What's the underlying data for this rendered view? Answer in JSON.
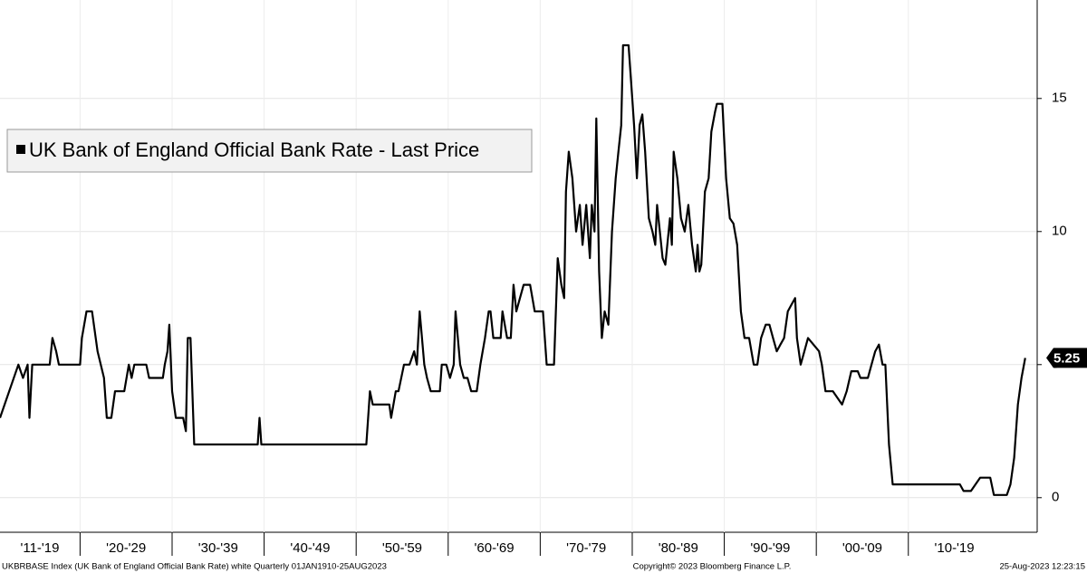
{
  "chart_data": {
    "type": "line",
    "series": [
      {
        "name": "UK Bank of England Official Bank Rate - Last Price",
        "color": "#000000",
        "x": [
          1911.3,
          1913.3,
          1913.8,
          1914.3,
          1914.5,
          1914.8,
          1916.7,
          1917.0,
          1917.4,
          1917.7,
          1920.0,
          1920.2,
          1920.7,
          1921.3,
          1921.9,
          1922.6,
          1922.9,
          1923.4,
          1923.8,
          1924.8,
          1925.3,
          1925.6,
          1925.9,
          1927.2,
          1927.5,
          1929.0,
          1929.2,
          1929.5,
          1929.7,
          1930.0,
          1930.4,
          1931.2,
          1931.5,
          1931.7,
          1932.0,
          1932.4,
          1939.3,
          1939.5,
          1939.7,
          1951.1,
          1951.5,
          1951.8,
          1953.6,
          1953.8,
          1954.3,
          1954.6,
          1955.2,
          1955.8,
          1956.3,
          1956.6,
          1956.9,
          1957.4,
          1957.7,
          1958.1,
          1959.1,
          1959.3,
          1959.8,
          1960.2,
          1960.6,
          1960.8,
          1961.3,
          1961.7,
          1962.1,
          1962.5,
          1963.1,
          1963.5,
          1964.0,
          1964.4,
          1964.6,
          1964.9,
          1965.7,
          1965.9,
          1966.4,
          1966.8,
          1967.1,
          1967.4,
          1967.8,
          1968.2,
          1968.9,
          1969.4,
          1970.3,
          1970.7,
          1971.5,
          1971.9,
          1972.3,
          1972.6,
          1972.8,
          1973.1,
          1973.5,
          1973.9,
          1974.3,
          1974.6,
          1975.0,
          1975.4,
          1975.6,
          1975.9,
          1976.1,
          1976.4,
          1976.7,
          1977.0,
          1977.4,
          1977.8,
          1978.2,
          1978.5,
          1978.8,
          1979.0,
          1979.6,
          1980.0,
          1980.2,
          1980.5,
          1980.8,
          1981.1,
          1981.4,
          1981.8,
          1982.2,
          1982.5,
          1982.7,
          1983.3,
          1983.6,
          1984.1,
          1984.3,
          1984.5,
          1984.9,
          1985.3,
          1985.7,
          1986.1,
          1986.5,
          1986.9,
          1987.1,
          1987.3,
          1987.5,
          1987.9,
          1988.3,
          1988.6,
          1989.0,
          1989.2,
          1989.8,
          1990.2,
          1990.6,
          1991.0,
          1991.4,
          1991.8,
          1992.2,
          1992.7,
          1993.2,
          1993.6,
          1994.0,
          1994.5,
          1994.9,
          1995.3,
          1995.7,
          1996.1,
          1996.5,
          1996.9,
          1997.3,
          1997.7,
          1997.9,
          1998.3,
          1998.7,
          1999.1,
          2000.3,
          2000.6,
          2001.0,
          2001.8,
          2002.3,
          2002.8,
          2003.3,
          2003.8,
          2004.5,
          2004.8,
          2005.6,
          2006.0,
          2006.4,
          2006.8,
          2007.2,
          2007.5,
          2007.9,
          2008.3,
          2015.6,
          2016.0,
          2016.8,
          2017.3,
          2017.8,
          2018.9,
          2019.3,
          2020.7,
          2021.1,
          2021.5,
          2021.9,
          2022.3,
          2022.7
        ],
        "values": [
          3,
          5,
          4.5,
          5,
          3,
          5,
          5,
          6,
          5.5,
          5,
          5,
          6,
          7,
          7,
          5.5,
          4.5,
          3,
          3,
          4,
          4,
          5,
          4.5,
          5,
          5,
          4.5,
          4.5,
          5,
          5.5,
          6.5,
          4,
          3,
          3,
          2.5,
          6,
          6,
          2,
          2,
          3,
          2,
          2,
          4,
          3.5,
          3.5,
          3,
          4,
          4,
          5,
          5,
          5.5,
          5,
          7,
          5,
          4.5,
          4,
          4,
          5,
          5,
          4.5,
          5,
          7,
          5,
          4.5,
          4.5,
          4,
          4,
          5,
          6,
          7,
          7,
          6,
          6,
          7,
          6,
          6,
          8,
          7,
          7.5,
          8,
          8,
          7,
          7,
          5,
          5,
          9,
          8,
          7.5,
          11.5,
          13,
          12,
          10,
          11,
          9.5,
          11,
          9,
          11,
          10,
          14.25,
          8.5,
          6,
          7,
          6.5,
          10,
          12,
          13,
          14,
          17,
          17,
          15,
          14,
          12,
          14,
          14.4,
          13,
          10.5,
          10,
          9.5,
          11,
          9,
          8.75,
          10.5,
          9.5,
          13,
          12,
          10.5,
          10,
          11,
          9.5,
          8.5,
          9.5,
          8.5,
          8.75,
          11.5,
          12,
          13.75,
          14.5,
          14.8,
          14.8,
          12,
          10.5,
          10.3,
          9.5,
          7,
          6,
          6,
          5,
          5,
          6,
          6.5,
          6.5,
          6,
          5.5,
          5.75,
          6,
          7,
          7.25,
          7.5,
          6,
          5,
          5.5,
          6,
          5.5,
          5,
          4,
          4,
          3.75,
          3.5,
          4,
          4.75,
          4.75,
          4.5,
          4.5,
          5,
          5.5,
          5.75,
          5,
          5,
          2,
          0.5,
          0.5,
          0.25,
          0.25,
          0.5,
          0.75,
          0.75,
          0.1,
          0.1,
          0.5,
          1.5,
          3.5,
          4.5,
          5.25
        ]
      }
    ],
    "xlim": [
      1911.3,
      2024.0
    ],
    "ylim": [
      -1.3,
      18.7
    ],
    "yticks": [
      0,
      5,
      10,
      15
    ],
    "xticks": [
      {
        "value": 1915,
        "label": "'11-'19"
      },
      {
        "value": 1925,
        "label": "'20-'29"
      },
      {
        "value": 1935,
        "label": "'30-'39"
      },
      {
        "value": 1945,
        "label": "'40-'49"
      },
      {
        "value": 1955,
        "label": "'50-'59"
      },
      {
        "value": 1965,
        "label": "'60-'69"
      },
      {
        "value": 1975,
        "label": "'70-'79"
      },
      {
        "value": 1985,
        "label": "'80-'89"
      },
      {
        "value": 1995,
        "label": "'90-'99"
      },
      {
        "value": 2005,
        "label": "'00-'09"
      },
      {
        "value": 2015,
        "label": "'10-'19"
      }
    ],
    "grid": true,
    "legend": "upper left",
    "footer": {
      "left": "UKBRBASE Index (UK Bank of England Official Bank Rate) white  Quarterly 01JAN1910-25AUG2023",
      "center": "Copyright© 2023 Bloomberg Finance L.P.",
      "right": "25-Aug-2023 12:23:15"
    }
  }
}
